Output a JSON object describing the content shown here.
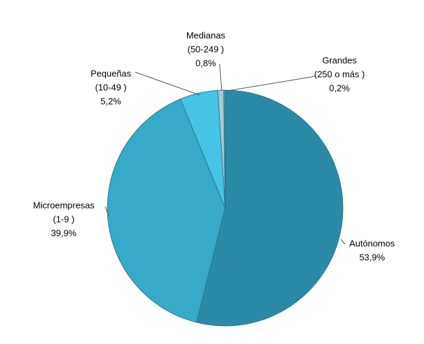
{
  "chart_data": {
    "type": "pie",
    "categories": [
      [
        "Autónomos"
      ],
      [
        "Microempresas",
        "(1-9 )"
      ],
      [
        "Pequeñas",
        "(10-49 )"
      ],
      [
        "Medianas",
        "(50-249 )"
      ],
      [
        "Grandes",
        "(250 o más )"
      ]
    ],
    "values": [
      53.9,
      39.9,
      5.2,
      0.8,
      0.2
    ],
    "value_labels": [
      "53,9%",
      "39,9%",
      "5,2%",
      "0,8%",
      "0,2%"
    ],
    "colors": [
      "#2b8aa8",
      "#37a9c9",
      "#45c4e6",
      "#a9c7d6",
      "#6d9fb7"
    ]
  }
}
